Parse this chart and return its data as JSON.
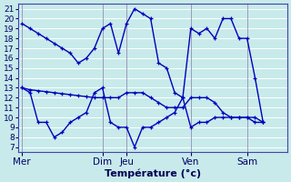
{
  "title": "Température (°c)",
  "bg_color": "#c8eaea",
  "grid_color": "#ffffff",
  "line_color": "#0000bb",
  "ylim": [
    6.5,
    21.5
  ],
  "yticks": [
    7,
    8,
    9,
    10,
    11,
    12,
    13,
    14,
    15,
    16,
    17,
    18,
    19,
    20,
    21
  ],
  "day_labels": [
    "Mer",
    "Dim",
    "Jeu",
    "Ven",
    "Sam"
  ],
  "day_x": [
    0,
    10,
    13,
    21,
    28
  ],
  "xmax": 33,
  "line_max_x": [
    0,
    1,
    2,
    3,
    4,
    5,
    6,
    7,
    8,
    9,
    10,
    11,
    12,
    13,
    14,
    15,
    16,
    17,
    18,
    19,
    20,
    21,
    22,
    23,
    24,
    25,
    26,
    27,
    28,
    29,
    30
  ],
  "line_max_y": [
    19.5,
    19.0,
    18.5,
    18.0,
    17.5,
    17.0,
    16.5,
    15.5,
    16.0,
    17.0,
    19.0,
    19.5,
    16.5,
    19.5,
    21.0,
    20.5,
    20.0,
    15.5,
    15.0,
    12.5,
    12.0,
    19.0,
    18.5,
    19.0,
    18.0,
    20.0,
    20.0,
    18.0,
    18.0,
    14.0,
    9.5
  ],
  "line_avg_x": [
    0,
    1,
    2,
    3,
    4,
    5,
    6,
    7,
    8,
    9,
    10,
    11,
    12,
    13,
    14,
    15,
    16,
    17,
    18,
    19,
    20,
    21,
    22,
    23,
    24,
    25,
    26,
    27,
    28,
    29,
    30
  ],
  "line_avg_y": [
    13.0,
    12.8,
    12.7,
    12.6,
    12.5,
    12.4,
    12.3,
    12.2,
    12.1,
    12.0,
    12.0,
    12.0,
    12.0,
    12.5,
    12.5,
    12.5,
    12.0,
    11.5,
    11.0,
    11.0,
    11.0,
    12.0,
    12.0,
    12.0,
    11.5,
    10.5,
    10.0,
    10.0,
    10.0,
    10.0,
    9.5
  ],
  "line_min_x": [
    0,
    1,
    2,
    3,
    4,
    5,
    6,
    7,
    8,
    9,
    10,
    11,
    12,
    13,
    14,
    15,
    16,
    17,
    18,
    19,
    20,
    21,
    22,
    23,
    24,
    25,
    26,
    27,
    28,
    29,
    30
  ],
  "line_min_y": [
    13.0,
    12.5,
    9.5,
    9.5,
    8.0,
    8.5,
    9.5,
    10.0,
    10.5,
    12.5,
    13.0,
    9.5,
    9.0,
    9.0,
    7.0,
    9.0,
    9.0,
    9.5,
    10.0,
    10.5,
    12.0,
    9.0,
    9.5,
    9.5,
    10.0,
    10.0,
    10.0,
    10.0,
    10.0,
    9.5,
    9.5
  ],
  "vline_x": [
    0,
    10,
    13,
    21,
    28
  ],
  "xlabel_fontsize": 8,
  "tick_fontsize": 6.5,
  "label_fontsize": 7.5
}
